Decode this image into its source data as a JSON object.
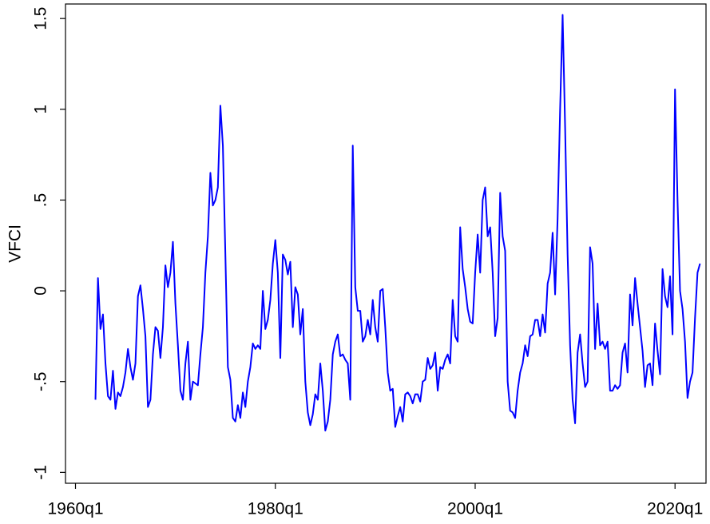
{
  "chart_data": {
    "type": "line",
    "y_label": "VFCI",
    "xlim": [
      1959,
      2023.1
    ],
    "ylim": [
      -1.06,
      1.58
    ],
    "xticks": [
      {
        "value": 1960,
        "label": "1960q1"
      },
      {
        "value": 1980,
        "label": "1980q1"
      },
      {
        "value": 2000,
        "label": "2000q1"
      },
      {
        "value": 2020,
        "label": "2020q1"
      }
    ],
    "yticks": [
      -1,
      {
        "value": -0.5,
        "label": "-.5"
      },
      0,
      {
        "value": 0.5,
        "label": ".5"
      },
      1,
      1.5
    ],
    "grid": false,
    "x": [
      1962,
      1962.25,
      1962.5,
      1962.75,
      1963,
      1963.25,
      1963.5,
      1963.75,
      1964,
      1964.25,
      1964.5,
      1964.75,
      1965,
      1965.25,
      1965.5,
      1965.75,
      1966,
      1966.25,
      1966.5,
      1966.75,
      1967,
      1967.25,
      1967.5,
      1967.75,
      1968,
      1968.25,
      1968.5,
      1968.75,
      1969,
      1969.25,
      1969.5,
      1969.75,
      1970,
      1970.25,
      1970.5,
      1970.75,
      1971,
      1971.25,
      1971.5,
      1971.75,
      1972,
      1972.25,
      1972.5,
      1972.75,
      1973,
      1973.25,
      1973.5,
      1973.75,
      1974,
      1974.25,
      1974.5,
      1974.75,
      1975,
      1975.25,
      1975.5,
      1975.75,
      1976,
      1976.25,
      1976.5,
      1976.75,
      1977,
      1977.25,
      1977.5,
      1977.75,
      1978,
      1978.25,
      1978.5,
      1978.75,
      1979,
      1979.25,
      1979.5,
      1979.75,
      1980,
      1980.25,
      1980.5,
      1980.75,
      1981,
      1981.25,
      1981.5,
      1981.75,
      1982,
      1982.25,
      1982.5,
      1982.75,
      1983,
      1983.25,
      1983.5,
      1983.75,
      1984,
      1984.25,
      1984.5,
      1984.75,
      1985,
      1985.25,
      1985.5,
      1985.75,
      1986,
      1986.25,
      1986.5,
      1986.75,
      1987,
      1987.25,
      1987.5,
      1987.75,
      1988,
      1988.25,
      1988.5,
      1988.75,
      1989,
      1989.25,
      1989.5,
      1989.75,
      1990,
      1990.25,
      1990.5,
      1990.75,
      1991,
      1991.25,
      1991.5,
      1991.75,
      1992,
      1992.25,
      1992.5,
      1992.75,
      1993,
      1993.25,
      1993.5,
      1993.75,
      1994,
      1994.25,
      1994.5,
      1994.75,
      1995,
      1995.25,
      1995.5,
      1995.75,
      1996,
      1996.25,
      1996.5,
      1996.75,
      1997,
      1997.25,
      1997.5,
      1997.75,
      1998,
      1998.25,
      1998.5,
      1998.75,
      1999,
      1999.25,
      1999.5,
      1999.75,
      2000,
      2000.25,
      2000.5,
      2000.75,
      2001,
      2001.25,
      2001.5,
      2001.75,
      2002,
      2002.25,
      2002.5,
      2002.75,
      2003,
      2003.25,
      2003.5,
      2003.75,
      2004,
      2004.25,
      2004.5,
      2004.75,
      2005,
      2005.25,
      2005.5,
      2005.75,
      2006,
      2006.25,
      2006.5,
      2006.75,
      2007,
      2007.25,
      2007.5,
      2007.75,
      2008,
      2008.25,
      2008.5,
      2008.75,
      2009,
      2009.25,
      2009.5,
      2009.75,
      2010,
      2010.25,
      2010.5,
      2010.75,
      2011,
      2011.25,
      2011.5,
      2011.75,
      2012,
      2012.25,
      2012.5,
      2012.75,
      2013,
      2013.25,
      2013.5,
      2013.75,
      2014,
      2014.25,
      2014.5,
      2014.75,
      2015,
      2015.25,
      2015.5,
      2015.75,
      2016,
      2016.25,
      2016.5,
      2016.75,
      2017,
      2017.25,
      2017.5,
      2017.75,
      2018,
      2018.25,
      2018.5,
      2018.75,
      2019,
      2019.25,
      2019.5,
      2019.75,
      2020,
      2020.25,
      2020.5,
      2020.75,
      2021,
      2021.25,
      2021.5,
      2021.75,
      2022,
      2022.25,
      2022.5
    ],
    "series": [
      {
        "name": "VFCI",
        "color": "#0000ff",
        "values": [
          -0.6,
          0.07,
          -0.21,
          -0.13,
          -0.4,
          -0.58,
          -0.6,
          -0.44,
          -0.65,
          -0.56,
          -0.58,
          -0.53,
          -0.45,
          -0.32,
          -0.42,
          -0.49,
          -0.4,
          -0.03,
          0.03,
          -0.1,
          -0.25,
          -0.64,
          -0.6,
          -0.35,
          -0.2,
          -0.22,
          -0.37,
          -0.2,
          0.14,
          0.02,
          0.1,
          0.27,
          -0.07,
          -0.3,
          -0.55,
          -0.6,
          -0.4,
          -0.28,
          -0.6,
          -0.5,
          -0.51,
          -0.52,
          -0.35,
          -0.2,
          0.1,
          0.3,
          0.65,
          0.47,
          0.5,
          0.57,
          1.02,
          0.8,
          0.2,
          -0.42,
          -0.49,
          -0.7,
          -0.72,
          -0.63,
          -0.7,
          -0.56,
          -0.64,
          -0.5,
          -0.42,
          -0.29,
          -0.32,
          -0.3,
          -0.32,
          0.0,
          -0.21,
          -0.16,
          -0.05,
          0.15,
          0.28,
          0.1,
          -0.37,
          0.2,
          0.17,
          0.09,
          0.16,
          -0.2,
          0.02,
          -0.02,
          -0.24,
          -0.1,
          -0.5,
          -0.67,
          -0.74,
          -0.68,
          -0.57,
          -0.6,
          -0.4,
          -0.55,
          -0.77,
          -0.72,
          -0.6,
          -0.35,
          -0.28,
          -0.24,
          -0.36,
          -0.35,
          -0.38,
          -0.4,
          -0.6,
          0.8,
          0.02,
          -0.11,
          -0.11,
          -0.28,
          -0.25,
          -0.16,
          -0.24,
          -0.05,
          -0.2,
          -0.28,
          0.0,
          0.01,
          -0.2,
          -0.45,
          -0.55,
          -0.54,
          -0.75,
          -0.69,
          -0.64,
          -0.72,
          -0.57,
          -0.56,
          -0.58,
          -0.62,
          -0.57,
          -0.57,
          -0.61,
          -0.5,
          -0.49,
          -0.37,
          -0.43,
          -0.41,
          -0.34,
          -0.55,
          -0.42,
          -0.43,
          -0.38,
          -0.35,
          -0.4,
          -0.05,
          -0.25,
          -0.28,
          0.35,
          0.12,
          0.02,
          -0.1,
          -0.17,
          -0.18,
          0.1,
          0.31,
          0.1,
          0.5,
          0.57,
          0.3,
          0.35,
          0.1,
          -0.25,
          -0.15,
          0.54,
          0.3,
          0.22,
          -0.5,
          -0.66,
          -0.67,
          -0.7,
          -0.55,
          -0.45,
          -0.4,
          -0.3,
          -0.36,
          -0.25,
          -0.24,
          -0.16,
          -0.16,
          -0.25,
          -0.13,
          -0.23,
          0.04,
          0.1,
          0.32,
          -0.02,
          0.4,
          1.0,
          1.52,
          0.9,
          0.2,
          -0.3,
          -0.6,
          -0.73,
          -0.34,
          -0.24,
          -0.4,
          -0.53,
          -0.5,
          0.24,
          0.15,
          -0.32,
          -0.07,
          -0.3,
          -0.28,
          -0.32,
          -0.28,
          -0.55,
          -0.55,
          -0.52,
          -0.54,
          -0.52,
          -0.34,
          -0.29,
          -0.45,
          -0.02,
          -0.19,
          0.07,
          -0.07,
          -0.2,
          -0.33,
          -0.53,
          -0.41,
          -0.4,
          -0.52,
          -0.18,
          -0.33,
          -0.46,
          0.12,
          -0.03,
          -0.09,
          0.08,
          -0.24,
          1.11,
          0.5,
          0.0,
          -0.1,
          -0.28,
          -0.59,
          -0.5,
          -0.45,
          -0.15,
          0.1,
          0.15
        ]
      }
    ]
  }
}
